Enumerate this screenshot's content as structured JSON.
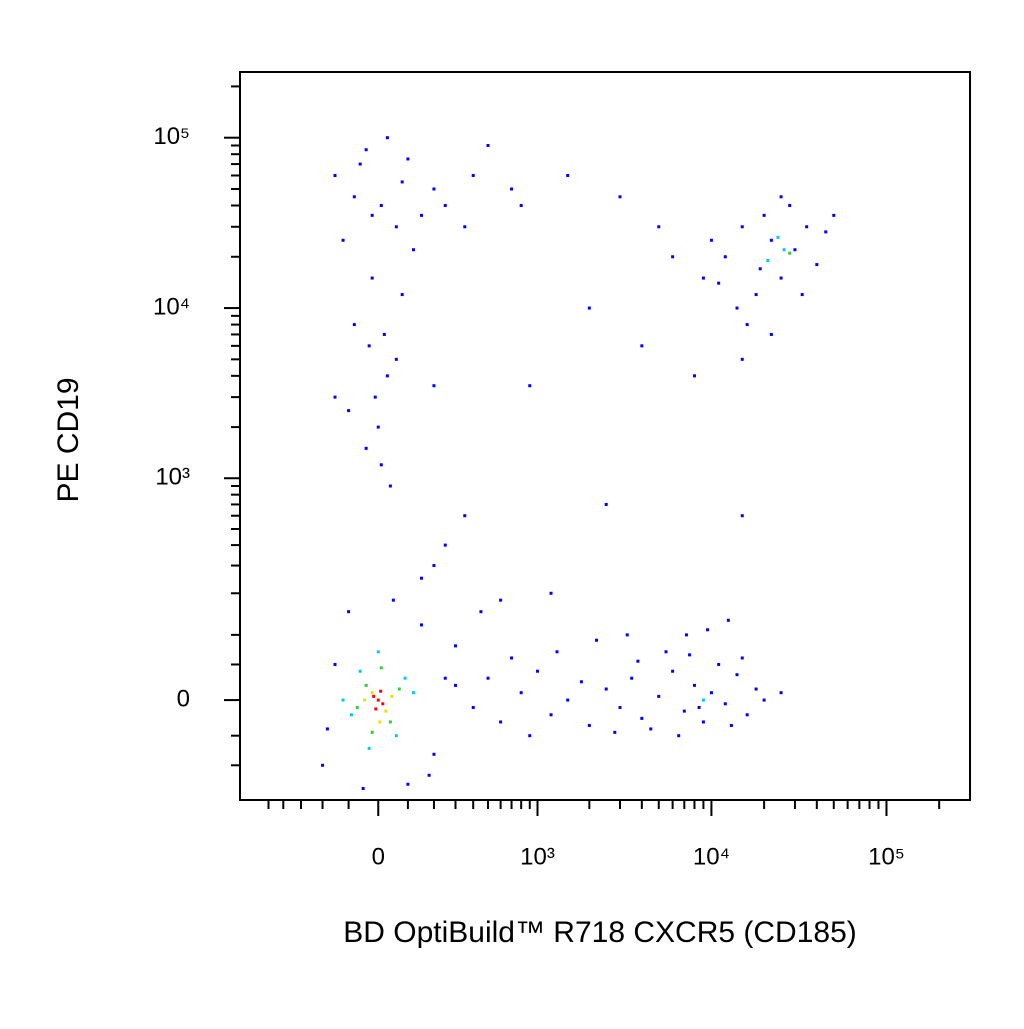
{
  "chart_data": {
    "type": "scatter",
    "x_label": "BD OptiBuild™ R718 CXCR5 (CD185)",
    "y_label": "PE CD19",
    "xscale": "biexponential",
    "yscale": "biexponential",
    "xlim": [
      -750,
      300000
    ],
    "ylim": [
      -180,
      243000
    ],
    "xticks": [
      0,
      {
        "value": 1000,
        "label": "10³"
      },
      {
        "value": 10000,
        "label": "10⁴"
      },
      {
        "value": 100000,
        "label": "10⁵"
      }
    ],
    "yticks": [
      0,
      {
        "value": 1000,
        "label": "10³"
      },
      {
        "value": 10000,
        "label": "10⁴"
      },
      {
        "value": 100000,
        "label": "10⁵"
      }
    ],
    "xminorticks": [
      -500,
      -400,
      -300,
      -200,
      -100,
      100,
      200,
      300,
      400,
      500,
      600,
      700,
      800,
      900,
      2000,
      3000,
      4000,
      5000,
      6000,
      7000,
      8000,
      9000,
      20000,
      30000,
      40000,
      50000,
      60000,
      70000,
      80000,
      90000,
      200000
    ],
    "yminorticks": [
      -100,
      -50,
      50,
      100,
      200,
      300,
      400,
      500,
      600,
      700,
      800,
      900,
      2000,
      3000,
      4000,
      5000,
      6000,
      7000,
      8000,
      9000,
      20000,
      30000,
      40000,
      50000,
      60000,
      70000,
      80000,
      90000,
      200000
    ],
    "series": [
      {
        "color": "#0000ff",
        "x": [
          -150,
          -40,
          30,
          -80,
          10,
          80,
          150,
          -120,
          60,
          200,
          400,
          250,
          500,
          -60,
          100,
          350,
          -20,
          120,
          -30,
          -80,
          20,
          60,
          -10,
          0,
          -40,
          10,
          40,
          -100,
          80,
          -20,
          30,
          200,
          -150,
          300,
          400,
          500,
          600,
          800,
          1000,
          1200,
          1500,
          1800,
          2000,
          2500,
          3000,
          3500,
          4000,
          5000,
          6000,
          7000,
          8000,
          9000,
          10000,
          12000,
          14000,
          16000,
          18000,
          20000,
          25000,
          700,
          900,
          1300,
          2200,
          2800,
          3800,
          4500,
          5500,
          6500,
          7500,
          8500,
          11000,
          13000,
          15000,
          9500,
          12500,
          7200,
          3300,
          450,
          600,
          1200,
          250,
          350,
          200,
          150,
          12000,
          15000,
          18000,
          22000,
          25000,
          30000,
          35000,
          40000,
          10000,
          14000,
          20000,
          28000,
          45000,
          16000,
          22000,
          9000,
          6000,
          5000,
          8000,
          15000,
          25000,
          33000,
          50000,
          11000,
          19000,
          800,
          1500,
          3000,
          2000,
          700,
          900,
          2500,
          15000,
          4000,
          -200,
          -150,
          200,
          150,
          -100,
          250,
          -180,
          100,
          300,
          -50,
          50,
          180
        ],
        "y": [
          60000,
          85000,
          100000,
          45000,
          40000,
          55000,
          35000,
          25000,
          30000,
          50000,
          60000,
          40000,
          90000,
          70000,
          75000,
          30000,
          35000,
          22000,
          6000,
          8000,
          7000,
          5000,
          3000,
          2000,
          1500,
          1200,
          900,
          2500,
          12000,
          15000,
          4000,
          3500,
          3000,
          20,
          -10,
          30,
          -30,
          10,
          40,
          -20,
          0,
          25,
          -35,
          15,
          -10,
          30,
          -25,
          5,
          40,
          -15,
          20,
          -30,
          10,
          -5,
          35,
          -20,
          15,
          0,
          10,
          60,
          -50,
          70,
          90,
          -45,
          55,
          -40,
          70,
          -50,
          65,
          -10,
          50,
          -35,
          60,
          110,
          130,
          100,
          100,
          150,
          180,
          200,
          400,
          600,
          300,
          250,
          20000,
          30000,
          12000,
          25000,
          15000,
          22000,
          30000,
          18000,
          25000,
          10000,
          35000,
          40000,
          28000,
          8000,
          7000,
          15000,
          20000,
          30000,
          4000,
          5000,
          45000,
          12000,
          35000,
          14000,
          17000,
          40000,
          60000,
          45000,
          10000,
          50000,
          3500,
          700,
          600,
          6000,
          -100,
          50,
          -80,
          120,
          150,
          30,
          -40,
          -140,
          80,
          -150,
          180,
          -120
        ]
      },
      {
        "color": "#00c8ff",
        "x": [
          -60,
          60,
          -90,
          90,
          0,
          -30,
          120,
          -120,
          26000,
          21000,
          24000,
          9000
        ],
        "y": [
          40,
          -50,
          -20,
          30,
          70,
          -70,
          10,
          0,
          22000,
          19000,
          26000,
          0
        ]
      },
      {
        "color": "#30d030",
        "x": [
          -40,
          40,
          -70,
          70,
          10,
          -20,
          28000
        ],
        "y": [
          20,
          -30,
          -10,
          15,
          45,
          -45,
          21000
        ]
      },
      {
        "color": "#f0e000",
        "x": [
          -20,
          25,
          -45,
          45,
          5
        ],
        "y": [
          10,
          -15,
          0,
          5,
          -30
        ]
      },
      {
        "color": "#ff0000",
        "x": [
          0,
          -15,
          15,
          8,
          -8
        ],
        "y": [
          0,
          5,
          -5,
          12,
          -12
        ]
      }
    ]
  }
}
